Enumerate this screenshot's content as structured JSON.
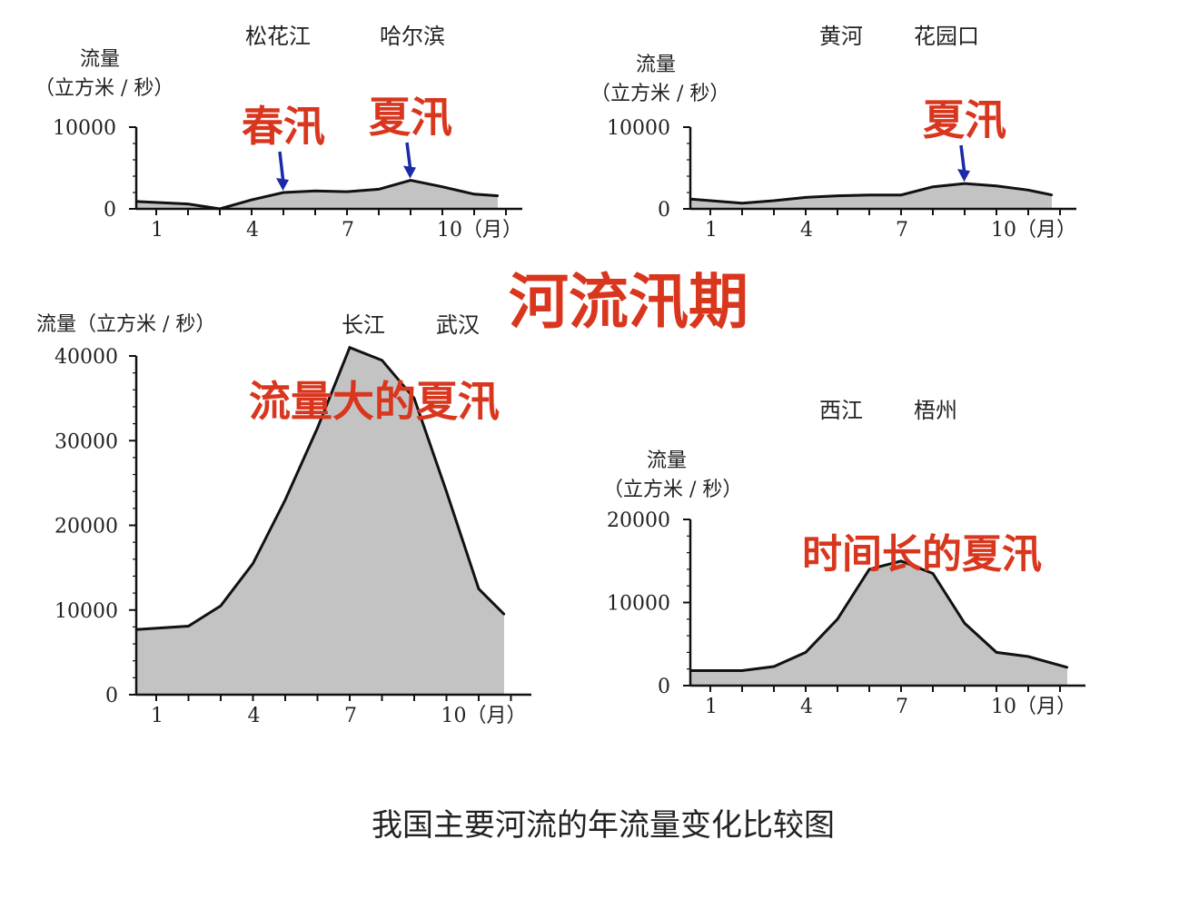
{
  "main_title": "河流汛期",
  "caption": "我国主要河流的年流量变化比较图",
  "colors": {
    "annotation": "#d9361e",
    "fill": "#c3c3c3",
    "arrow": "#1a2aa8"
  },
  "chart_data": [
    {
      "type": "area",
      "river": "松花江",
      "station": "哈尔滨",
      "ylabel_line1": "流量",
      "ylabel_line2": "（立方米 / 秒）",
      "x": [
        1,
        2,
        3,
        4,
        5,
        6,
        7,
        8,
        9,
        10,
        11,
        12
      ],
      "y": [
        900,
        600,
        0,
        1100,
        2000,
        2200,
        2100,
        2400,
        3500,
        2700,
        1800,
        1600
      ],
      "ylim": [
        0,
        10000
      ],
      "y_ticks": [
        "0",
        "10000"
      ],
      "x_ticks": [
        "1",
        "4",
        "7",
        "10（月）"
      ],
      "annotations": [
        {
          "text": "春汛",
          "x": 5
        },
        {
          "text": "夏汛",
          "x": 9
        }
      ]
    },
    {
      "type": "area",
      "river": "黄河",
      "station": "花园口",
      "ylabel_line1": "流量",
      "ylabel_line2": "（立方米 / 秒）",
      "x": [
        1,
        2,
        3,
        4,
        5,
        6,
        7,
        8,
        9,
        10,
        11,
        12
      ],
      "y": [
        1200,
        700,
        1000,
        1400,
        1600,
        1700,
        1700,
        2700,
        3100,
        2800,
        2300,
        1700
      ],
      "ylim": [
        0,
        10000
      ],
      "y_ticks": [
        "0",
        "10000"
      ],
      "x_ticks": [
        "1",
        "4",
        "7",
        "10（月）"
      ],
      "annotations": [
        {
          "text": "夏汛",
          "x": 9
        }
      ]
    },
    {
      "type": "area",
      "river": "长江",
      "station": "武汉",
      "ylabel": "流量（立方米 / 秒）",
      "x": [
        1,
        2,
        3,
        4,
        5,
        6,
        7,
        8,
        9,
        10,
        11,
        12
      ],
      "y": [
        7700,
        8100,
        10500,
        15500,
        23000,
        31500,
        41000,
        39500,
        35000,
        24000,
        12500,
        9500
      ],
      "ylim": [
        0,
        40000
      ],
      "y_ticks": [
        "0",
        "10000",
        "20000",
        "30000",
        "40000"
      ],
      "x_ticks": [
        "1",
        "4",
        "7",
        "10（月）"
      ],
      "annotations": [
        {
          "text": "流量大的夏汛"
        }
      ]
    },
    {
      "type": "area",
      "river": "西江",
      "station": "梧州",
      "ylabel_line1": "流量",
      "ylabel_line2": "（立方米 / 秒）",
      "x": [
        1,
        2,
        3,
        4,
        5,
        6,
        7,
        8,
        9,
        10,
        11,
        12
      ],
      "y": [
        1800,
        1800,
        2300,
        4000,
        8000,
        14000,
        15000,
        13500,
        7500,
        4000,
        3500,
        2200
      ],
      "ylim": [
        0,
        20000
      ],
      "y_ticks": [
        "0",
        "10000",
        "20000"
      ],
      "x_ticks": [
        "1",
        "4",
        "7",
        "10（月）"
      ],
      "annotations": [
        {
          "text": "时间长的夏汛"
        }
      ]
    }
  ]
}
